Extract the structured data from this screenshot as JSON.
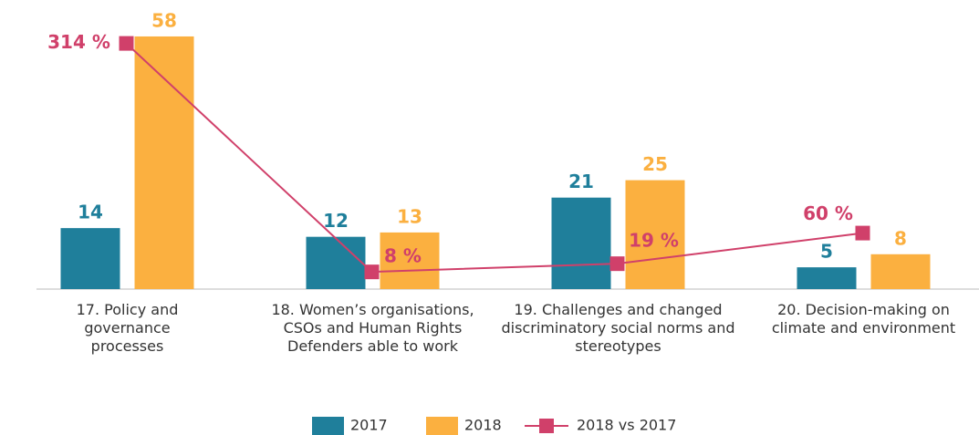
{
  "chart_data": {
    "type": "bar",
    "categories": [
      "17. Policy and governance processes",
      "18. Women’s organisations, CSOs and Human Rights Defenders able to work",
      "19. Challenges and changed discriminatory social norms and stereotypes",
      "20. Decision-making on climate and environment"
    ],
    "series": [
      {
        "name": "2017",
        "color": "#1f7f9b",
        "values": [
          14,
          12,
          21,
          5
        ]
      },
      {
        "name": "2018",
        "color": "#fbb040",
        "values": [
          58,
          13,
          25,
          8
        ]
      },
      {
        "name": "2018 vs 2017",
        "type": "line",
        "axis": "y2",
        "color": "#d0406a",
        "values": [
          314,
          8,
          19,
          60
        ],
        "value_labels": [
          "314 %",
          "8 %",
          "19 %",
          "60 %"
        ]
      }
    ],
    "ylim": [
      0,
      60
    ],
    "y2lim": [
      -15,
      335
    ],
    "legend": "bottom"
  }
}
